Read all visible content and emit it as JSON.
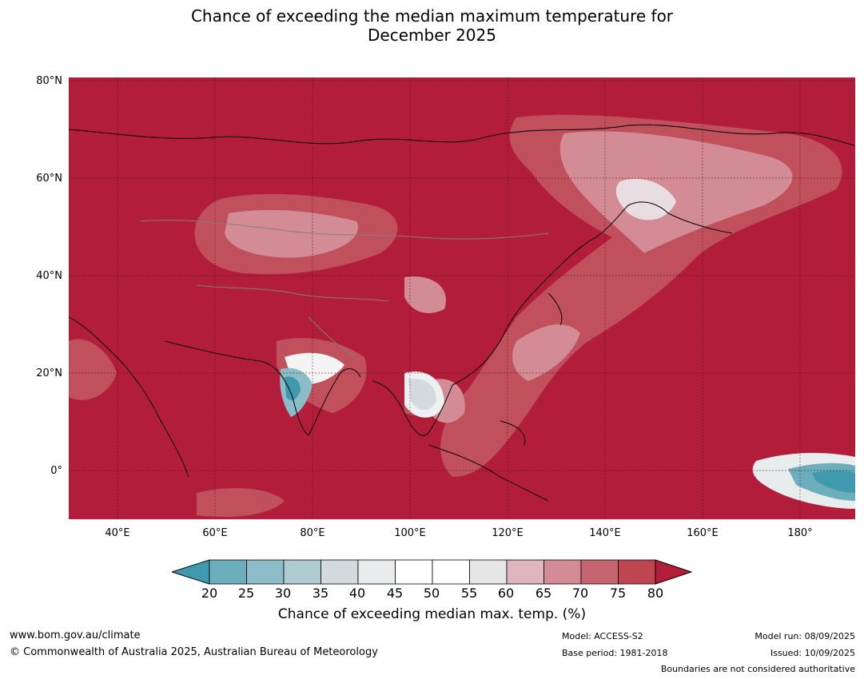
{
  "title_line1": "Chance of exceeding the median maximum temperature for",
  "title_line2": "December 2025",
  "lat_labels": [
    "80°N",
    "60°N",
    "40°N",
    "20°N",
    "0°"
  ],
  "lon_labels": [
    "40°E",
    "60°E",
    "80°E",
    "100°E",
    "120°E",
    "140°E",
    "160°E",
    "180°"
  ],
  "colorbar": {
    "ticks": [
      "20",
      "25",
      "30",
      "35",
      "40",
      "45",
      "50",
      "55",
      "60",
      "65",
      "70",
      "75",
      "80"
    ],
    "colors": [
      "#3e9aac",
      "#6caebb",
      "#8cbcc7",
      "#aecbd1",
      "#d2dadd",
      "#e8eced",
      "#ffffff",
      "#ffffff",
      "#e6e6e6",
      "#dfb6bd",
      "#d38b96",
      "#c6646f",
      "#bf4650",
      "#b21e3a"
    ],
    "label": "Chance of exceeding median max. temp. (%)"
  },
  "footer": {
    "url": "www.bom.gov.au/climate",
    "copyright": "© Commonwealth of Australia 2025, Australian Bureau of Meteorology",
    "model": "Model: ACCESS-S2",
    "base_period": "Base period: 1981-2018",
    "model_run": "Model run: 08/09/2025",
    "issued": "Issued: 10/09/2025",
    "disclaimer": "Boundaries are not considered authoritative"
  }
}
